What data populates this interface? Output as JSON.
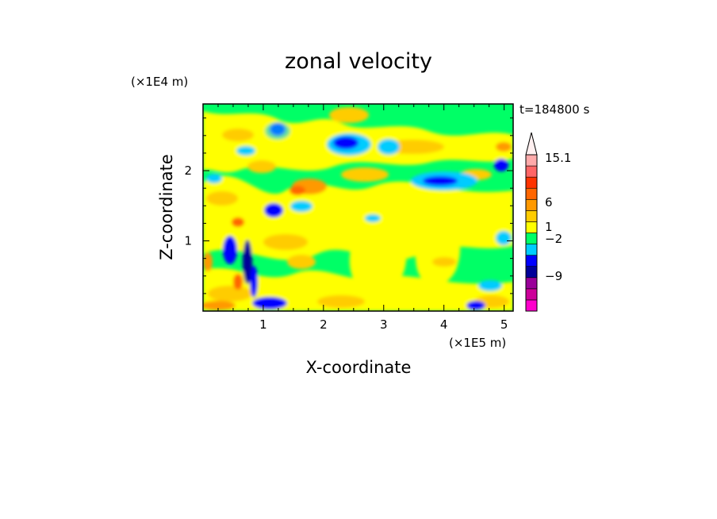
{
  "chart_data": {
    "type": "heatmap",
    "title": "zonal velocity",
    "xlabel": "X-coordinate",
    "ylabel": "Z-coordinate",
    "x_unit": "(×1E5 m)",
    "y_unit": "(×1E4 m)",
    "time_label": "t=184800 s",
    "xlim": [
      0,
      5.15
    ],
    "ylim": [
      0,
      2.95
    ],
    "x_ticks": [
      "1",
      "2",
      "3",
      "4",
      "5"
    ],
    "y_ticks": [
      "1",
      "2"
    ],
    "x_tick_values": [
      1,
      2,
      3,
      4,
      5
    ],
    "y_tick_values": [
      1,
      2
    ],
    "colorbar": {
      "levels": [
        {
          "color": "#ff00cc"
        },
        {
          "color": "#cc0099"
        },
        {
          "color": "#990099"
        },
        {
          "color": "#000099"
        },
        {
          "color": "#0000ff"
        },
        {
          "color": "#00ccff"
        },
        {
          "color": "#00ff66"
        },
        {
          "color": "#ffff00"
        },
        {
          "color": "#ffcc00"
        },
        {
          "color": "#ff9900"
        },
        {
          "color": "#ff6600"
        },
        {
          "color": "#ff3300"
        },
        {
          "color": "#ff6666"
        },
        {
          "color": "#ffaaaa"
        }
      ],
      "labels": [
        "15.1",
        "6",
        "1",
        "−2",
        "−9"
      ],
      "label_values": [
        15.1,
        6,
        1,
        -2,
        -9
      ]
    }
  }
}
